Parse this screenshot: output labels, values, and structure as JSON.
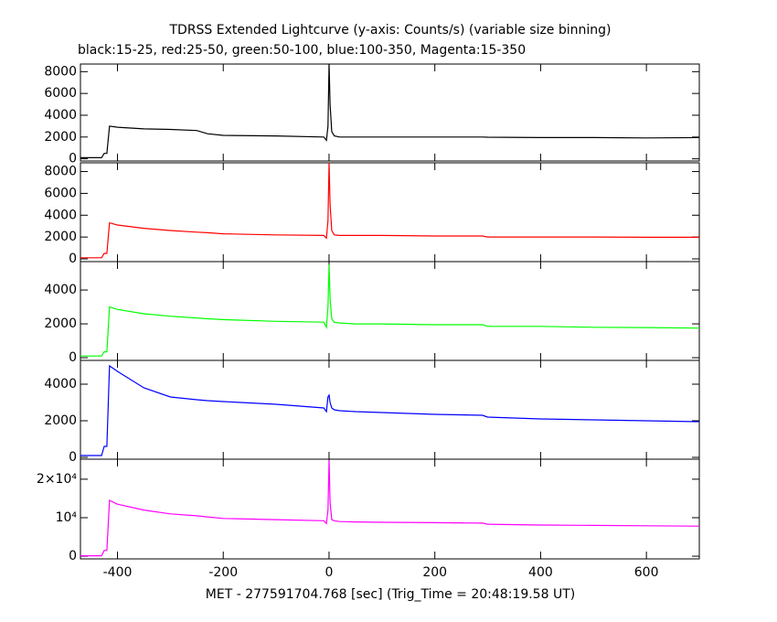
{
  "chart_data": [
    {
      "type": "line",
      "title": "TDRSS Extended Lightcurve (y-axis: Counts/s) (variable size binning)",
      "subtitle": "black:15-25, red:25-50, green:50-100, blue:100-350, Magenta:15-350",
      "x": [
        -470,
        -430,
        -425,
        -420,
        -415,
        -400,
        -350,
        -300,
        -250,
        -230,
        -200,
        -100,
        -10,
        -5,
        -2,
        0,
        2,
        5,
        10,
        20,
        50,
        100,
        200,
        290,
        300,
        400,
        500,
        600,
        700
      ],
      "color": "#000000",
      "values": [
        100,
        100,
        500,
        500,
        3000,
        2900,
        2750,
        2700,
        2600,
        2300,
        2150,
        2100,
        2000,
        1700,
        3000,
        8700,
        5000,
        2500,
        2100,
        2000,
        2000,
        2000,
        2000,
        2000,
        1980,
        1950,
        1950,
        1920,
        1950
      ],
      "xlim": [
        -470,
        700
      ],
      "xticks": [
        -400,
        -200,
        0,
        200,
        400,
        600
      ],
      "ylim": [
        -200,
        8700
      ],
      "yticks": [
        0,
        2000,
        4000,
        6000,
        8000
      ]
    },
    {
      "type": "line",
      "x": [
        -470,
        -430,
        -425,
        -420,
        -415,
        -400,
        -350,
        -300,
        -250,
        -230,
        -200,
        -100,
        -10,
        -5,
        -2,
        0,
        2,
        5,
        10,
        20,
        50,
        100,
        200,
        290,
        300,
        400,
        500,
        600,
        700
      ],
      "color": "#ff0000",
      "values": [
        100,
        100,
        500,
        500,
        3300,
        3100,
        2800,
        2600,
        2450,
        2400,
        2300,
        2200,
        2150,
        1900,
        3500,
        8800,
        5000,
        2600,
        2200,
        2150,
        2150,
        2150,
        2100,
        2100,
        2000,
        2000,
        2000,
        1980,
        1980
      ],
      "xlim": [
        -470,
        700
      ],
      "xticks": [
        -400,
        -200,
        0,
        200,
        400,
        600
      ],
      "ylim": [
        -250,
        8800
      ],
      "yticks": [
        0,
        2000,
        4000,
        6000,
        8000
      ]
    },
    {
      "type": "line",
      "x": [
        -470,
        -430,
        -425,
        -420,
        -415,
        -400,
        -350,
        -300,
        -250,
        -230,
        -200,
        -100,
        -10,
        -5,
        -2,
        0,
        2,
        5,
        10,
        20,
        50,
        100,
        200,
        290,
        300,
        400,
        500,
        600,
        700
      ],
      "color": "#00ff00",
      "values": [
        100,
        100,
        350,
        350,
        3000,
        2850,
        2600,
        2450,
        2350,
        2300,
        2250,
        2150,
        2100,
        1800,
        3000,
        5500,
        3500,
        2300,
        2100,
        2050,
        2000,
        2000,
        1950,
        1950,
        1850,
        1850,
        1800,
        1780,
        1750
      ],
      "xlim": [
        -470,
        700
      ],
      "xticks": [
        -400,
        -200,
        0,
        200,
        400,
        600
      ],
      "ylim": [
        -160,
        5680
      ],
      "yticks": [
        0,
        2000,
        4000
      ]
    },
    {
      "type": "line",
      "x": [
        -470,
        -430,
        -425,
        -420,
        -415,
        -400,
        -350,
        -300,
        -250,
        -230,
        -200,
        -100,
        -10,
        -5,
        -2,
        0,
        2,
        5,
        10,
        20,
        50,
        100,
        200,
        290,
        300,
        400,
        500,
        600,
        700
      ],
      "color": "#0000ff",
      "values": [
        100,
        100,
        600,
        600,
        5000,
        4700,
        3800,
        3300,
        3150,
        3100,
        3050,
        2900,
        2700,
        2500,
        3300,
        3400,
        3000,
        2700,
        2600,
        2550,
        2500,
        2450,
        2350,
        2300,
        2200,
        2100,
        2050,
        2000,
        1950
      ],
      "xlim": [
        -470,
        700
      ],
      "xticks": [
        -400,
        -200,
        0,
        200,
        400,
        600
      ],
      "ylim": [
        -100,
        5300
      ],
      "yticks": [
        0,
        2000,
        4000
      ]
    },
    {
      "type": "line",
      "x_label": "MET - 277591704.768 [sec] (Trig_Time = 20:48:19.58 UT)",
      "x": [
        -470,
        -430,
        -425,
        -420,
        -415,
        -400,
        -350,
        -300,
        -250,
        -230,
        -200,
        -100,
        -10,
        -5,
        -2,
        0,
        2,
        5,
        10,
        20,
        50,
        100,
        200,
        290,
        300,
        400,
        500,
        600,
        700
      ],
      "color": "#ff00ff",
      "values": [
        100,
        100,
        1500,
        1500,
        14500,
        13500,
        12000,
        11000,
        10500,
        10200,
        9800,
        9500,
        9200,
        8500,
        12000,
        25000,
        14000,
        9500,
        9200,
        9000,
        8900,
        8800,
        8700,
        8600,
        8300,
        8100,
        8000,
        7900,
        7800
      ],
      "xlim": [
        -470,
        700
      ],
      "xticks": [
        -400,
        -200,
        0,
        200,
        400,
        600
      ],
      "ylim": [
        -700,
        25200
      ],
      "yticks": [
        0,
        {
          "value": 10000,
          "label": "10⁴"
        },
        {
          "value": 20000,
          "label": "2×10⁴"
        }
      ]
    }
  ]
}
